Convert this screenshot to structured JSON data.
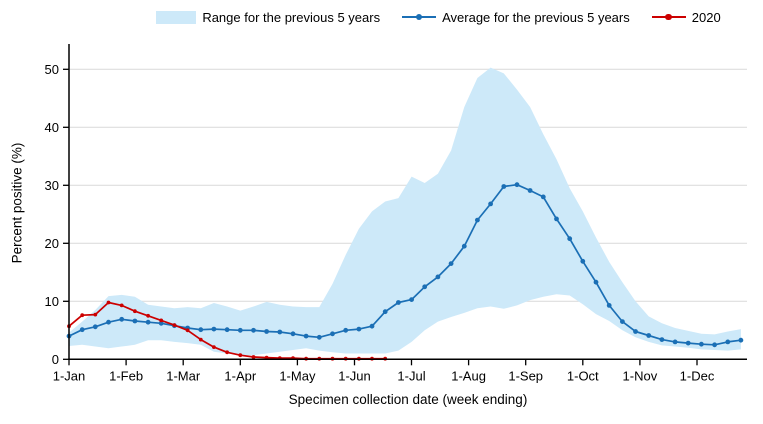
{
  "chart_data": {
    "type": "line",
    "title": "",
    "xlabel": "Specimen collection date (week ending)",
    "ylabel": "Percent positive (%)",
    "x_tick_labels": [
      "1-Jan",
      "1-Feb",
      "1-Mar",
      "1-Apr",
      "1-May",
      "1-Jun",
      "1-Jul",
      "1-Aug",
      "1-Sep",
      "1-Oct",
      "1-Nov",
      "1-Dec"
    ],
    "y_ticks": [
      0,
      10,
      20,
      30,
      40,
      50
    ],
    "ylim": [
      0,
      55
    ],
    "x_unit": "week",
    "n_weeks": 52,
    "grid": "horizontal",
    "legend_position": "top",
    "series": [
      {
        "name": "Range for the previous 5 years",
        "kind": "band",
        "color": "#cde9f9",
        "upper": [
          4.6,
          6.5,
          8.5,
          10.9,
          11.1,
          10.8,
          9.4,
          9.1,
          8.8,
          9.0,
          8.8,
          9.7,
          9.1,
          8.4,
          9.1,
          9.9,
          9.4,
          9.1,
          9.0,
          9.0,
          13.0,
          18.0,
          22.5,
          25.5,
          27.2,
          27.8,
          31.5,
          30.4,
          32.0,
          36.0,
          43.5,
          48.5,
          50.3,
          49.3,
          46.5,
          43.5,
          38.8,
          34.5,
          29.5,
          25.5,
          21.0,
          16.8,
          13.3,
          10.0,
          7.4,
          6.2,
          5.4,
          4.9,
          4.4,
          4.3,
          4.8,
          5.2
        ],
        "lower": [
          2.3,
          2.5,
          2.2,
          1.9,
          2.2,
          2.5,
          3.3,
          3.3,
          3.0,
          2.8,
          2.5,
          1.3,
          1.0,
          0.7,
          0.7,
          1.0,
          1.3,
          1.6,
          1.9,
          1.5,
          1.2,
          1.0,
          1.0,
          1.0,
          1.0,
          1.5,
          3.0,
          5.0,
          6.5,
          7.3,
          8.0,
          8.8,
          9.1,
          8.7,
          9.3,
          10.2,
          10.8,
          11.2,
          11.0,
          9.5,
          7.8,
          6.6,
          5.0,
          3.8,
          3.0,
          2.4,
          2.2,
          2.0,
          1.7,
          1.6,
          1.5,
          1.7
        ]
      },
      {
        "name": "Average for the previous 5 years",
        "kind": "line",
        "marker": "circle",
        "color": "#1b6fb5",
        "values": [
          4.0,
          5.1,
          5.6,
          6.4,
          6.9,
          6.6,
          6.4,
          6.2,
          5.8,
          5.4,
          5.1,
          5.2,
          5.1,
          5.0,
          5.0,
          4.8,
          4.7,
          4.4,
          4.0,
          3.8,
          4.4,
          5.0,
          5.2,
          5.7,
          8.2,
          9.8,
          10.3,
          12.5,
          14.2,
          16.5,
          19.5,
          24.0,
          26.8,
          29.8,
          30.1,
          29.1,
          28.0,
          24.2,
          20.8,
          16.9,
          13.3,
          9.3,
          6.5,
          4.8,
          4.1,
          3.4,
          3.0,
          2.8,
          2.6,
          2.5,
          3.0,
          3.3
        ]
      },
      {
        "name": "2020",
        "kind": "line",
        "marker": "circle",
        "color": "#cc0000",
        "values": [
          5.7,
          7.6,
          7.7,
          9.8,
          9.3,
          8.3,
          7.5,
          6.7,
          5.9,
          5.0,
          3.4,
          2.1,
          1.2,
          0.7,
          0.4,
          0.3,
          0.2,
          0.2,
          0.1,
          0.1,
          0.1,
          0.1,
          0.1,
          0.1,
          0.1
        ]
      }
    ],
    "colors": {
      "gridline": "#d9d9d9",
      "axis": "#000000",
      "text": "#000000",
      "background": "#ffffff"
    }
  }
}
